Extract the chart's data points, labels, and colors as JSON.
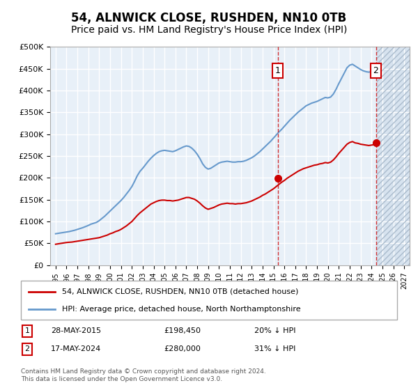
{
  "title": "54, ALNWICK CLOSE, RUSHDEN, NN10 0TB",
  "subtitle": "Price paid vs. HM Land Registry's House Price Index (HPI)",
  "title_fontsize": 12,
  "subtitle_fontsize": 10,
  "ylabel": "",
  "xlabel": "",
  "ylim": [
    0,
    500000
  ],
  "yticks": [
    0,
    50000,
    100000,
    150000,
    200000,
    250000,
    300000,
    350000,
    400000,
    450000,
    500000
  ],
  "ytick_labels": [
    "£0",
    "£50K",
    "£100K",
    "£150K",
    "£200K",
    "£250K",
    "£300K",
    "£350K",
    "£400K",
    "£450K",
    "£500K"
  ],
  "xlim_start": 1994.5,
  "xlim_end": 2027.5,
  "hatch_start": 2024.5,
  "background_color": "#ffffff",
  "plot_bg_color": "#e8f0f8",
  "grid_color": "#ffffff",
  "hatch_color": "#c8d8e8",
  "marker1_x": 2015.4,
  "marker1_y": 198450,
  "marker1_label": "1",
  "marker1_date": "28-MAY-2015",
  "marker1_price": "£198,450",
  "marker1_note": "20% ↓ HPI",
  "marker2_x": 2024.4,
  "marker2_y": 280000,
  "marker2_label": "2",
  "marker2_date": "17-MAY-2024",
  "marker2_price": "£280,000",
  "marker2_note": "31% ↓ HPI",
  "red_line_color": "#cc0000",
  "blue_line_color": "#6699cc",
  "marker_box_color": "#cc0000",
  "legend_line1": "54, ALNWICK CLOSE, RUSHDEN, NN10 0TB (detached house)",
  "legend_line2": "HPI: Average price, detached house, North Northamptonshire",
  "footnote": "Contains HM Land Registry data © Crown copyright and database right 2024.\nThis data is licensed under the Open Government Licence v3.0.",
  "hpi_years": [
    1995,
    1995.25,
    1995.5,
    1995.75,
    1996,
    1996.25,
    1996.5,
    1996.75,
    1997,
    1997.25,
    1997.5,
    1997.75,
    1998,
    1998.25,
    1998.5,
    1998.75,
    1999,
    1999.25,
    1999.5,
    1999.75,
    2000,
    2000.25,
    2000.5,
    2000.75,
    2001,
    2001.25,
    2001.5,
    2001.75,
    2002,
    2002.25,
    2002.5,
    2002.75,
    2003,
    2003.25,
    2003.5,
    2003.75,
    2004,
    2004.25,
    2004.5,
    2004.75,
    2005,
    2005.25,
    2005.5,
    2005.75,
    2006,
    2006.25,
    2006.5,
    2006.75,
    2007,
    2007.25,
    2007.5,
    2007.75,
    2008,
    2008.25,
    2008.5,
    2008.75,
    2009,
    2009.25,
    2009.5,
    2009.75,
    2010,
    2010.25,
    2010.5,
    2010.75,
    2011,
    2011.25,
    2011.5,
    2011.75,
    2012,
    2012.25,
    2012.5,
    2012.75,
    2013,
    2013.25,
    2013.5,
    2013.75,
    2014,
    2014.25,
    2014.5,
    2014.75,
    2015,
    2015.25,
    2015.5,
    2015.75,
    2016,
    2016.25,
    2016.5,
    2016.75,
    2017,
    2017.25,
    2017.5,
    2017.75,
    2018,
    2018.25,
    2018.5,
    2018.75,
    2019,
    2019.25,
    2019.5,
    2019.75,
    2020,
    2020.25,
    2020.5,
    2020.75,
    2021,
    2021.25,
    2021.5,
    2021.75,
    2022,
    2022.25,
    2022.5,
    2022.75,
    2023,
    2023.25,
    2023.5,
    2023.75,
    2024,
    2024.25
  ],
  "hpi_values": [
    72000,
    73000,
    74000,
    75000,
    76000,
    77000,
    78500,
    80000,
    82000,
    84000,
    86000,
    88500,
    91000,
    94000,
    96000,
    98000,
    102000,
    107000,
    112000,
    118000,
    124000,
    130000,
    136000,
    142000,
    148000,
    155000,
    163000,
    171000,
    180000,
    192000,
    205000,
    215000,
    222000,
    230000,
    238000,
    245000,
    251000,
    256000,
    260000,
    262000,
    263000,
    262000,
    261000,
    260000,
    262000,
    265000,
    268000,
    271000,
    273000,
    272000,
    268000,
    262000,
    254000,
    244000,
    232000,
    224000,
    220000,
    222000,
    226000,
    230000,
    234000,
    236000,
    237000,
    238000,
    237000,
    236000,
    236000,
    237000,
    237000,
    238000,
    240000,
    243000,
    246000,
    250000,
    255000,
    260000,
    266000,
    272000,
    278000,
    284000,
    291000,
    298000,
    305000,
    311000,
    318000,
    325000,
    332000,
    338000,
    344000,
    350000,
    355000,
    360000,
    365000,
    368000,
    371000,
    373000,
    375000,
    378000,
    381000,
    384000,
    383000,
    385000,
    392000,
    403000,
    416000,
    428000,
    440000,
    452000,
    458000,
    460000,
    456000,
    452000,
    448000,
    445000,
    443000,
    442000,
    443000,
    445000
  ],
  "red_years": [
    1995,
    1995.25,
    1995.5,
    1995.75,
    1996,
    1996.25,
    1996.5,
    1996.75,
    1997,
    1997.25,
    1997.5,
    1997.75,
    1998,
    1998.25,
    1998.5,
    1998.75,
    1999,
    1999.25,
    1999.5,
    1999.75,
    2000,
    2000.25,
    2000.5,
    2000.75,
    2001,
    2001.25,
    2001.5,
    2001.75,
    2002,
    2002.25,
    2002.5,
    2002.75,
    2003,
    2003.25,
    2003.5,
    2003.75,
    2004,
    2004.25,
    2004.5,
    2004.75,
    2005,
    2005.25,
    2005.5,
    2005.75,
    2006,
    2006.25,
    2006.5,
    2006.75,
    2007,
    2007.25,
    2007.5,
    2007.75,
    2008,
    2008.25,
    2008.5,
    2008.75,
    2009,
    2009.25,
    2009.5,
    2009.75,
    2010,
    2010.25,
    2010.5,
    2010.75,
    2011,
    2011.25,
    2011.5,
    2011.75,
    2012,
    2012.25,
    2012.5,
    2012.75,
    2013,
    2013.25,
    2013.5,
    2013.75,
    2014,
    2014.25,
    2014.5,
    2014.75,
    2015,
    2015.25,
    2015.5,
    2015.75,
    2016,
    2016.25,
    2016.5,
    2016.75,
    2017,
    2017.25,
    2017.5,
    2017.75,
    2018,
    2018.25,
    2018.5,
    2018.75,
    2019,
    2019.25,
    2019.5,
    2019.75,
    2020,
    2020.25,
    2020.5,
    2020.75,
    2021,
    2021.25,
    2021.5,
    2021.75,
    2022,
    2022.25,
    2022.5,
    2022.75,
    2023,
    2023.25,
    2023.5,
    2023.75,
    2024,
    2024.25
  ],
  "red_values": [
    48000,
    49000,
    50000,
    51000,
    52000,
    52500,
    53000,
    54000,
    55000,
    56000,
    57000,
    58000,
    59000,
    60000,
    61000,
    62000,
    63000,
    65000,
    67000,
    69000,
    72000,
    74000,
    77000,
    79000,
    82000,
    86000,
    90000,
    95000,
    100000,
    107000,
    114000,
    120000,
    125000,
    130000,
    135000,
    140000,
    143000,
    146000,
    148000,
    149000,
    149000,
    148000,
    148000,
    147000,
    148000,
    149000,
    151000,
    153000,
    155000,
    155000,
    153000,
    151000,
    147000,
    142000,
    136000,
    131000,
    128000,
    130000,
    132000,
    135000,
    138000,
    140000,
    141000,
    142000,
    141000,
    141000,
    140000,
    141000,
    141000,
    142000,
    143000,
    145000,
    147000,
    150000,
    153000,
    156000,
    160000,
    163000,
    167000,
    171000,
    175000,
    180000,
    185000,
    190000,
    194000,
    199000,
    203000,
    207000,
    211000,
    215000,
    218000,
    221000,
    223000,
    225000,
    227000,
    229000,
    230000,
    232000,
    233000,
    235000,
    234000,
    236000,
    241000,
    248000,
    256000,
    263000,
    270000,
    277000,
    281000,
    283000,
    280000,
    279000,
    277000,
    276000,
    275000,
    274000,
    275000,
    276000
  ]
}
